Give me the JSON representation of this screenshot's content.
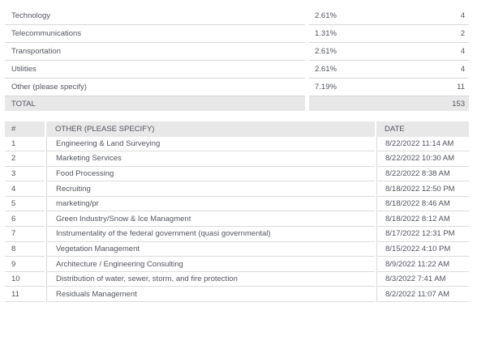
{
  "colors": {
    "header_bg": "#e8e8e8",
    "row_line": "#d8d8d8",
    "text": "#53565f"
  },
  "summary_table": {
    "rows": [
      {
        "label": "Technology",
        "percent": "2.61%",
        "count": "4"
      },
      {
        "label": "Telecommunications",
        "percent": "1.31%",
        "count": "2"
      },
      {
        "label": "Transportation",
        "percent": "2.61%",
        "count": "4"
      },
      {
        "label": "Utilities",
        "percent": "2.61%",
        "count": "4"
      },
      {
        "label": "Other (please specify)",
        "percent": "7.19%",
        "count": "11"
      }
    ],
    "total": {
      "label": "TOTAL",
      "count": "153"
    }
  },
  "detail_table": {
    "headers": {
      "index": "#",
      "other": "OTHER (PLEASE SPECIFY)",
      "date": "DATE"
    },
    "rows": [
      {
        "index": "1",
        "other": "Engineering & Land Surveying",
        "date": "8/22/2022 11:14 AM"
      },
      {
        "index": "2",
        "other": "Marketing Services",
        "date": "8/22/2022 10:30 AM"
      },
      {
        "index": "3",
        "other": "Food Processing",
        "date": "8/22/2022 8:38 AM"
      },
      {
        "index": "4",
        "other": "Recruiting",
        "date": "8/18/2022 12:50 PM"
      },
      {
        "index": "5",
        "other": "marketing/pr",
        "date": "8/18/2022 8:46 AM"
      },
      {
        "index": "6",
        "other": "Green Industry/Snow & Ice Managment",
        "date": "8/18/2022 8:12 AM"
      },
      {
        "index": "7",
        "other": "Instrumentality of the federal government (quasi governmental)",
        "date": "8/17/2022 12:31 PM"
      },
      {
        "index": "8",
        "other": "Vegetation Management",
        "date": "8/15/2022 4:10 PM"
      },
      {
        "index": "9",
        "other": "Architecture / Engineering Consulting",
        "date": "8/9/2022 11:22 AM"
      },
      {
        "index": "10",
        "other": "Distribution of water, sewer, storm, and fire protection",
        "date": "8/3/2022 7:41 AM"
      },
      {
        "index": "11",
        "other": "Residuals Management",
        "date": "8/2/2022 11:07 AM"
      }
    ]
  }
}
